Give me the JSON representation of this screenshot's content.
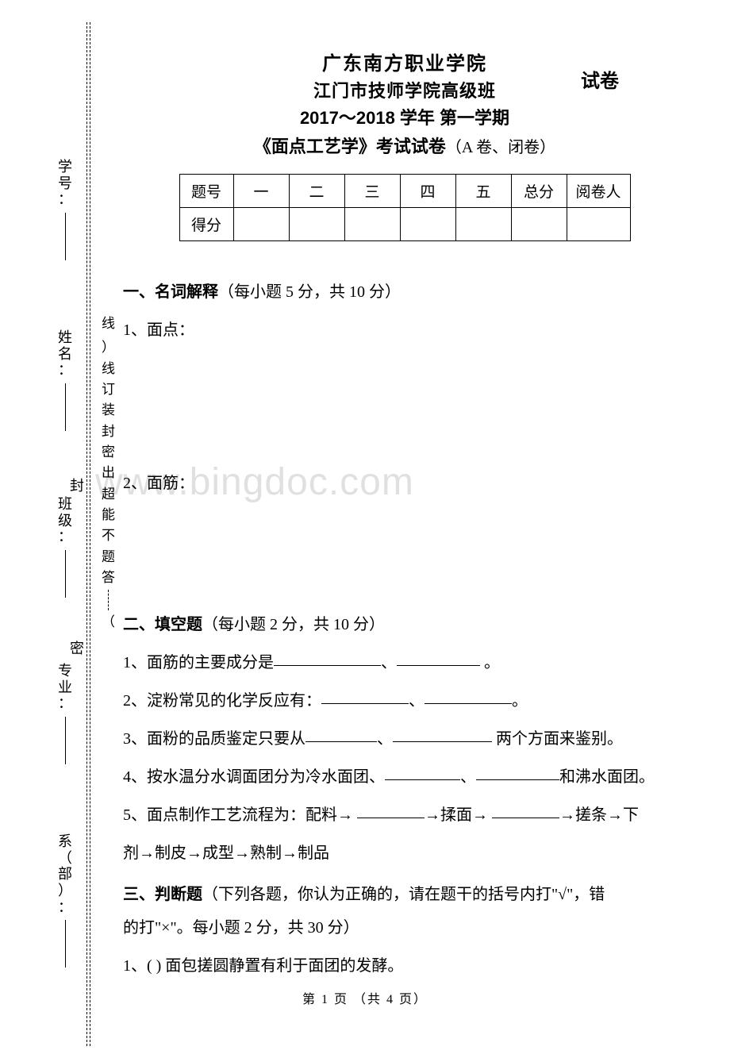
{
  "header": {
    "school1": "广东南方职业学院",
    "school2": "江门市技师学院高级班",
    "shijuan": "试卷",
    "year_line": "2017～2018 学年  第一学期",
    "course_bold": "《面点工艺学》考试试卷",
    "course_light": "（A 卷、闭卷）"
  },
  "score_table": {
    "row1": [
      "题号",
      "一",
      "二",
      "三",
      "四",
      "五",
      "总分",
      "阅卷人"
    ],
    "row2_label": "得分"
  },
  "sections": {
    "s1_title": "一、名词解释",
    "s1_light": "（每小题 5 分，共 10 分）",
    "s1_q1": "1、面点：",
    "s1_q2": "2、面筋：",
    "s2_title": "二、填空题",
    "s2_light": "（每小题 2 分，共 10 分）",
    "s2_q1_a": "1、面筋的主要成分是",
    "s2_q1_b": "、",
    "s2_q1_c": " 。",
    "s2_q2_a": "2、淀粉常见的化学反应有：",
    "s2_q2_b": "、",
    "s2_q2_c": "。",
    "s2_q3_a": "3、面粉的品质鉴定只要从",
    "s2_q3_b": "、",
    "s2_q3_c": " 两个方面来鉴别。",
    "s2_q4_a": "4、按水温分水调面团分为冷水面团、",
    "s2_q4_b": "、",
    "s2_q4_c": "和沸水面团。",
    "s2_q5_a": "5、面点制作工艺流程为：配料→ ",
    "s2_q5_b": "→揉面→ ",
    "s2_q5_c": "→搓条→下",
    "s2_q5_line2": "剂→制皮→成型→熟制→制品",
    "s3_title": "三、判断题",
    "s3_light_a": "（下列各题，你认为正确的，请在题干的括号内打\"√\"，错",
    "s3_light_b": "的打\"×\"。每小题 2 分，共 30 分）",
    "s3_q1": "1、(    ) 面包搓圆静置有利于面团的发酵。"
  },
  "watermark": "www.bingdoc.com",
  "footer": {
    "text": "第 1 页 （共 4 页）"
  },
  "left_labels": {
    "l1": "学号：",
    "l2": "姓名：",
    "l3": "班级：",
    "l4": "专业：",
    "l5": "系（部）："
  },
  "mid_annotation": {
    "open": "（",
    "chars": [
      "答",
      "题",
      "不",
      "能",
      "超",
      "出",
      "密",
      "封",
      "装",
      "订",
      "线"
    ],
    "close": "）",
    "line_label": "线"
  },
  "seal": {
    "a": "密",
    "b": "封"
  },
  "colors": {
    "text": "#000000",
    "background": "#ffffff",
    "watermark": "rgba(0,0,0,0.12)"
  }
}
